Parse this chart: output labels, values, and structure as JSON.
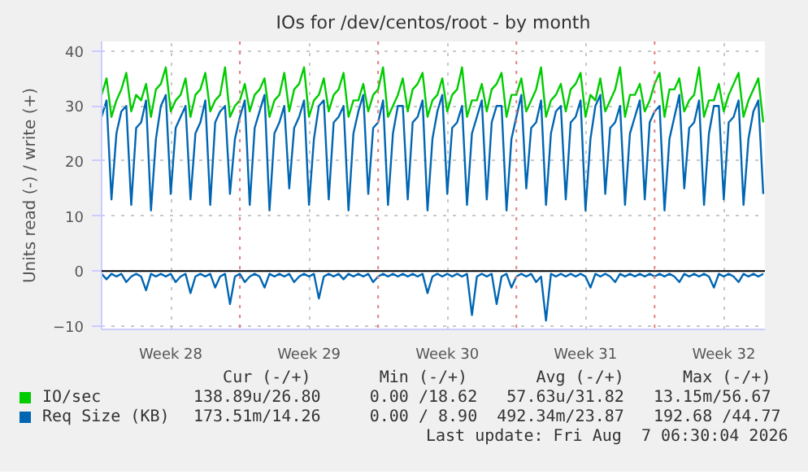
{
  "chart_data": {
    "type": "line",
    "title": "IOs for /dev/centos/root - by month",
    "ylabel": "Units read (-) / write (+)",
    "x": [
      "2026-07-06T00:00",
      "2026-07-06T06:00",
      "2026-07-06T12:00",
      "2026-07-06T18:00",
      "2026-07-07T00:00",
      "2026-07-07T06:00",
      "2026-07-07T12:00",
      "2026-07-07T18:00",
      "2026-07-08T00:00",
      "2026-07-08T06:00",
      "2026-07-08T12:00",
      "2026-07-08T18:00",
      "2026-07-09T00:00",
      "2026-07-09T06:00",
      "2026-07-09T12:00",
      "2026-07-09T18:00",
      "2026-07-10T00:00",
      "2026-07-10T06:00",
      "2026-07-10T12:00",
      "2026-07-10T18:00",
      "2026-07-11T00:00",
      "2026-07-11T06:00",
      "2026-07-11T12:00",
      "2026-07-11T18:00",
      "2026-07-12T00:00",
      "2026-07-12T06:00",
      "2026-07-12T12:00",
      "2026-07-12T18:00",
      "2026-07-13T00:00",
      "2026-07-13T06:00",
      "2026-07-13T12:00",
      "2026-07-13T18:00",
      "2026-07-14T00:00",
      "2026-07-14T06:00",
      "2026-07-14T12:00",
      "2026-07-14T18:00",
      "2026-07-15T00:00",
      "2026-07-15T06:00",
      "2026-07-15T12:00",
      "2026-07-15T18:00",
      "2026-07-16T00:00",
      "2026-07-16T06:00",
      "2026-07-16T12:00",
      "2026-07-16T18:00",
      "2026-07-17T00:00",
      "2026-07-17T06:00",
      "2026-07-17T12:00",
      "2026-07-17T18:00",
      "2026-07-18T00:00",
      "2026-07-18T06:00",
      "2026-07-18T12:00",
      "2026-07-18T18:00",
      "2026-07-19T00:00",
      "2026-07-19T06:00",
      "2026-07-19T12:00",
      "2026-07-19T18:00",
      "2026-07-20T00:00",
      "2026-07-20T06:00",
      "2026-07-20T12:00",
      "2026-07-20T18:00",
      "2026-07-21T00:00",
      "2026-07-21T06:00",
      "2026-07-21T12:00",
      "2026-07-21T18:00",
      "2026-07-22T00:00",
      "2026-07-22T06:00",
      "2026-07-22T12:00",
      "2026-07-22T18:00",
      "2026-07-23T00:00",
      "2026-07-23T06:00",
      "2026-07-23T12:00",
      "2026-07-23T18:00",
      "2026-07-24T00:00",
      "2026-07-24T06:00",
      "2026-07-24T12:00",
      "2026-07-24T18:00",
      "2026-07-25T00:00",
      "2026-07-25T06:00",
      "2026-07-25T12:00",
      "2026-07-25T18:00",
      "2026-07-26T00:00",
      "2026-07-26T06:00",
      "2026-07-26T12:00",
      "2026-07-26T18:00",
      "2026-07-27T00:00",
      "2026-07-27T06:00",
      "2026-07-27T12:00",
      "2026-07-27T18:00",
      "2026-07-28T00:00",
      "2026-07-28T06:00",
      "2026-07-28T12:00",
      "2026-07-28T18:00",
      "2026-07-29T00:00",
      "2026-07-29T06:00",
      "2026-07-29T12:00",
      "2026-07-29T18:00",
      "2026-07-30T00:00",
      "2026-07-30T06:00",
      "2026-07-30T12:00",
      "2026-07-30T18:00",
      "2026-07-31T00:00",
      "2026-07-31T06:00",
      "2026-07-31T12:00",
      "2026-07-31T18:00",
      "2026-08-01T00:00",
      "2026-08-01T06:00",
      "2026-08-01T12:00",
      "2026-08-01T18:00",
      "2026-08-02T00:00",
      "2026-08-02T06:00",
      "2026-08-02T12:00",
      "2026-08-02T18:00",
      "2026-08-03T00:00",
      "2026-08-03T06:00",
      "2026-08-03T12:00",
      "2026-08-03T18:00",
      "2026-08-04T00:00",
      "2026-08-04T06:00",
      "2026-08-04T12:00",
      "2026-08-04T18:00",
      "2026-08-05T00:00",
      "2026-08-05T06:00",
      "2026-08-05T12:00",
      "2026-08-05T18:00",
      "2026-08-06T00:00",
      "2026-08-06T06:00",
      "2026-08-06T12:00",
      "2026-08-06T18:00",
      "2026-08-07T00:00",
      "2026-08-07T06:00",
      "2026-08-07T12:00",
      "2026-08-07T18:00",
      "2026-08-08T00:00",
      "2026-08-08T06:00",
      "2026-08-08T12:00"
    ],
    "xlim": [
      "2026-07-06T00:00",
      "2026-08-08T14:00"
    ],
    "xticks": [
      {
        "value": "2026-07-09T12:00",
        "label": "Week 28"
      },
      {
        "value": "2026-07-16T12:00",
        "label": "Week 29"
      },
      {
        "value": "2026-07-23T12:00",
        "label": "Week 30"
      },
      {
        "value": "2026-07-30T12:00",
        "label": "Week 31"
      },
      {
        "value": "2026-08-06T12:00",
        "label": "Week 32"
      }
    ],
    "ylim": [
      -10.6,
      41.7
    ],
    "yticks": [
      -10,
      0,
      10,
      20,
      30,
      40
    ],
    "grid": true,
    "legend": "bottom",
    "series": [
      {
        "name": "IO/sec",
        "color": "#00cc00",
        "values": [
          32,
          35,
          28,
          31,
          33,
          36,
          29,
          32,
          31,
          34,
          28,
          33,
          34,
          37,
          29,
          31,
          32,
          35,
          28,
          32,
          33,
          36,
          29,
          31,
          32,
          37,
          28,
          30,
          31,
          34,
          29,
          32,
          33,
          35,
          28,
          31,
          32,
          36,
          29,
          33,
          34,
          37,
          28,
          31,
          32,
          35,
          29,
          32,
          33,
          36,
          28,
          31,
          31,
          34,
          29,
          32,
          33,
          37,
          28,
          30,
          32,
          35,
          29,
          33,
          34,
          36,
          28,
          31,
          32,
          35,
          29,
          32,
          33,
          37,
          28,
          31,
          31,
          34,
          29,
          33,
          34,
          36,
          28,
          32,
          32,
          35,
          29,
          31,
          33,
          37,
          28,
          31,
          32,
          34,
          29,
          33,
          34,
          36,
          28,
          32,
          31,
          35,
          29,
          31,
          33,
          37,
          28,
          32,
          32,
          34,
          29,
          31,
          34,
          36,
          28,
          33,
          33,
          35,
          29,
          31,
          32,
          37,
          28,
          31,
          31,
          34,
          29,
          32,
          34,
          36,
          28,
          31,
          33,
          35,
          27
        ]
      },
      {
        "name": "Req Size (KB)",
        "color": "#0066b3",
        "values": [
          28,
          31,
          13,
          25,
          29,
          30,
          12,
          26,
          27,
          31,
          11,
          24,
          30,
          32,
          14,
          26,
          28,
          30,
          13,
          25,
          27,
          31,
          12,
          27,
          29,
          30,
          14,
          24,
          28,
          31,
          12,
          26,
          29,
          32,
          11,
          25,
          27,
          30,
          15,
          26,
          28,
          31,
          12,
          24,
          30,
          31,
          13,
          27,
          28,
          30,
          11,
          25,
          29,
          32,
          14,
          26,
          27,
          31,
          12,
          25,
          30,
          30,
          13,
          27,
          28,
          31,
          11,
          24,
          29,
          32,
          14,
          26,
          27,
          30,
          12,
          25,
          28,
          31,
          13,
          27,
          30,
          30,
          11,
          24,
          28,
          32,
          15,
          26,
          27,
          31,
          12,
          25,
          29,
          30,
          13,
          27,
          28,
          31,
          11,
          24,
          30,
          32,
          14,
          26,
          27,
          30,
          12,
          25,
          28,
          31,
          13,
          27,
          29,
          30,
          11,
          24,
          28,
          32,
          15,
          26,
          27,
          31,
          12,
          25,
          30,
          30,
          13,
          27,
          28,
          31,
          12,
          24,
          29,
          31,
          14
        ]
      },
      {
        "color": "#0066b3",
        "values": [
          -0.5,
          -1.5,
          -0.5,
          -1,
          -0.5,
          -2,
          -1,
          -0.5,
          -1,
          -3.5,
          -0.5,
          -1,
          -0.5,
          -1,
          -0.5,
          -2,
          -1,
          -0.5,
          -4,
          -1,
          -0.5,
          -1,
          -0.5,
          -3,
          -1,
          -0.5,
          -6,
          -1,
          -0.5,
          -2,
          -1,
          -0.5,
          -1,
          -3,
          -0.5,
          -1,
          -0.5,
          -1,
          -0.5,
          -2,
          -1,
          -0.5,
          -1,
          -0.5,
          -5,
          -1,
          -0.5,
          -1,
          -0.5,
          -1.5,
          -0.5,
          -1,
          -0.5,
          -1,
          -0.5,
          -2,
          -1,
          -0.5,
          -1,
          -0.5,
          -1,
          -0.5,
          -1,
          -0.5,
          -1,
          -0.5,
          -4,
          -1,
          -0.5,
          -1,
          -0.5,
          -1,
          -0.5,
          -1,
          -0.5,
          -8,
          -1,
          -0.5,
          -1,
          -0.5,
          -6,
          -1,
          -0.5,
          -3,
          -1,
          -0.5,
          -1,
          -0.5,
          -2,
          -1,
          -9,
          -0.5,
          -1,
          -0.5,
          -1,
          -0.5,
          -1,
          -0.5,
          -1,
          -3,
          -0.5,
          -1,
          -0.5,
          -1,
          -2,
          -0.5,
          -1,
          -0.5,
          -1,
          -0.5,
          -1,
          -0.5,
          -1,
          -0.5,
          -1,
          -0.5,
          -1,
          -2,
          -0.5,
          -1,
          -0.5,
          -1,
          -0.5,
          -1,
          -3,
          -0.5,
          -1,
          -0.5,
          -1,
          -2,
          -0.5,
          -1,
          -0.5,
          -1,
          -0.5
        ]
      }
    ],
    "ref_lines": [
      {
        "axis": "y",
        "value": 0,
        "color": "#000000",
        "line_style": "solid"
      },
      {
        "axis": "x",
        "value": "2026-07-13T00:00",
        "color": "#e08080",
        "line_style": "dotted"
      },
      {
        "axis": "x",
        "value": "2026-07-20T00:00",
        "color": "#e08080",
        "line_style": "dotted"
      },
      {
        "axis": "x",
        "value": "2026-07-27T00:00",
        "color": "#e08080",
        "line_style": "dotted"
      },
      {
        "axis": "x",
        "value": "2026-08-03T00:00",
        "color": "#e08080",
        "line_style": "dotted"
      }
    ],
    "annotations": [
      "   Cur (-/+)       Min (-/+)       Avg (-/+)      Max (-/+)",
      "138.89u/26.80     0.00 /18.62   57.63u/31.82   13.15m/56.67",
      "173.51m/14.26     0.00 / 8.90  492.34m/23.87   192.68 /44.77",
      "Last update: Fri Aug  7 06:30:04 2026"
    ]
  }
}
